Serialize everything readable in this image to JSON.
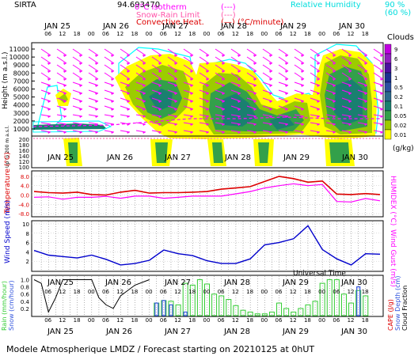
{
  "header": {
    "station": "SIRTA",
    "coords": "94.693470",
    "legend_rh_title": "Relative Humidity",
    "rh_levels": [
      "90 %",
      "(60 %)"
    ],
    "legend_items": [
      {
        "label": "0°C isotherm",
        "marker": "(---)",
        "color": "#ff00ff"
      },
      {
        "label": "Snow-Rain Limit",
        "marker": "(---)",
        "color": "#ff55aa"
      },
      {
        "label": "Convective Heat.",
        "marker": "(—) (°C/minute)",
        "color": "#dd0000"
      }
    ]
  },
  "time_axis": {
    "days": [
      "JAN 25",
      "JAN 26",
      "JAN 27",
      "JAN 28",
      "JAN 29",
      "JAN 30"
    ],
    "hour_ticks": [
      "06",
      "12",
      "18",
      "00"
    ],
    "bottom_label": "Universal Time"
  },
  "colors": {
    "cloud_palette": [
      "#ffff00",
      "#9ccc00",
      "#33a04a",
      "#1a8070",
      "#2a6a8c",
      "#2a4fa0",
      "#1a2f90",
      "#4a10a0",
      "#9020c0",
      "#c000e0"
    ],
    "temperature": "#dd0000",
    "humidex": "#ff00ff",
    "wind": "#0000cc",
    "rain": "#33cc33",
    "snow": "#3355dd",
    "cloud_fraction": "#000000",
    "rh": "#00ffff",
    "arrows": "#ff00ff"
  },
  "footer": {
    "title": "Modele Atmospherique LMDZ / Forecast starting on 20210125 at 0hUT"
  },
  "chart_data": [
    {
      "type": "heatmap",
      "panel": "Clouds",
      "ylabel": "Height (m a.s.l.)",
      "ylabel_low": "Up to 200 m a.s.l.",
      "y_ticks": [
        "11000",
        "10000",
        "9000",
        "8000",
        "7000",
        "6000",
        "5000",
        "4000",
        "3000",
        "2000",
        "1000"
      ],
      "y_ticks_low": [
        "200",
        "180",
        "160",
        "140",
        "120",
        "100"
      ],
      "colorbar_title": "Clouds",
      "colorbar_unit": "(g/kg)",
      "colorbar_ticks": [
        "9",
        "6",
        "3",
        "1",
        "0.5",
        "0.2",
        "0.1",
        "0.05",
        "0.02",
        "0.01"
      ]
    },
    {
      "type": "line",
      "panel": "Temperature",
      "ylabel": "Temperature (°C)",
      "ylabel_right": "HUMIDEX (°C)",
      "y_ticks": [
        "8.0",
        "4.0",
        "0.0",
        "-4.0",
        "-8.0"
      ],
      "ylim": [
        -9,
        10
      ],
      "x_hours": [
        0,
        6,
        12,
        18,
        24,
        30,
        36,
        42,
        48,
        54,
        60,
        66,
        72,
        78,
        84,
        90,
        96,
        102,
        108,
        114,
        120,
        126,
        132,
        138,
        144
      ],
      "series": [
        {
          "name": "Temperature",
          "values": [
            1.5,
            1.0,
            0.8,
            1.2,
            0.2,
            0.0,
            1.2,
            2.0,
            0.8,
            1.0,
            1.0,
            1.2,
            1.5,
            2.5,
            3.0,
            3.6,
            5.8,
            8.0,
            7.0,
            5.5,
            6.0,
            0.4,
            0.2,
            0.6,
            0.2
          ]
        },
        {
          "name": "Humidex",
          "values": [
            -1.0,
            -0.8,
            -1.8,
            -1.0,
            -1.0,
            -0.6,
            -1.4,
            -0.5,
            -0.5,
            -1.4,
            -1.0,
            -0.5,
            -0.5,
            -0.5,
            0.5,
            1.5,
            3.0,
            4.0,
            4.8,
            4.0,
            4.5,
            -2.8,
            -3.0,
            -1.5,
            -2.5
          ]
        }
      ]
    },
    {
      "type": "line",
      "panel": "Wind",
      "ylabel": "Wind Speed (m/s)",
      "ylabel_right": "Wind Gust (m/s)",
      "y_ticks": [
        "10",
        "8",
        "6",
        "4",
        "2"
      ],
      "ylim": [
        0,
        10.5
      ],
      "x_hours": [
        0,
        6,
        12,
        18,
        24,
        30,
        36,
        42,
        48,
        54,
        60,
        66,
        72,
        78,
        84,
        90,
        96,
        102,
        108,
        114,
        120,
        126,
        132,
        138,
        144
      ],
      "series": [
        {
          "name": "Wind Speed",
          "values": [
            4.3,
            3.3,
            3.0,
            2.7,
            3.3,
            2.4,
            1.2,
            1.5,
            2.2,
            4.4,
            3.6,
            3.2,
            2.1,
            1.5,
            1.5,
            2.5,
            5.5,
            6.0,
            6.8,
            9.6,
            4.5,
            2.5,
            1.2,
            3.6,
            3.5
          ]
        }
      ]
    },
    {
      "type": "bar",
      "panel": "Precipitation",
      "ylabel": "Rain (mm/hour)",
      "ylabel_2": "Snow (cm/hour)",
      "ylabel_right": [
        "CAPE (J/g)",
        "Snow Depth (cm)",
        "Cloud Fraction"
      ],
      "y_ticks": [
        "1.0",
        "0.8",
        "0.6",
        "0.4",
        "0.2"
      ],
      "ylim": [
        0,
        1.1
      ],
      "x_hours": [
        51,
        54,
        57,
        60,
        63,
        66,
        69,
        72,
        75,
        78,
        81,
        84,
        87,
        90,
        93,
        96,
        99,
        102,
        105,
        108,
        111,
        114,
        117,
        120,
        123,
        126,
        129,
        132,
        135,
        138
      ],
      "series": [
        {
          "name": "Rain",
          "values": [
            0.35,
            0.42,
            0.4,
            0.3,
            0.9,
            0.85,
            1.0,
            0.88,
            0.6,
            0.55,
            0.45,
            0.28,
            0.15,
            0.1,
            0.05,
            0.05,
            0.1,
            0.35,
            0.2,
            0.1,
            0.2,
            0.3,
            0.4,
            0.9,
            1.0,
            1.0,
            0.6,
            0.35,
            0.7,
            0.55
          ]
        },
        {
          "name": "Snow",
          "values": [
            0.35,
            0.42,
            0.3,
            0.0,
            0.1,
            0.0,
            0.0,
            0.0,
            0.0,
            0.0,
            0.0,
            0.0,
            0.0,
            0.0,
            0.0,
            0.0,
            0.0,
            0.0,
            0.0,
            0.0,
            0.0,
            0.0,
            0.0,
            0.0,
            0.0,
            0.0,
            0.0,
            0.0,
            0.8,
            0.0
          ]
        },
        {
          "name": "Cloud Fraction",
          "x_hours": [
            0,
            3,
            6,
            9,
            12,
            18,
            24,
            27,
            30,
            33,
            36,
            42,
            48
          ],
          "values": [
            1.0,
            0.9,
            0.1,
            0.5,
            1.0,
            1.0,
            1.0,
            0.5,
            0.3,
            0.2,
            0.55,
            0.85,
            1.0
          ]
        }
      ]
    }
  ]
}
